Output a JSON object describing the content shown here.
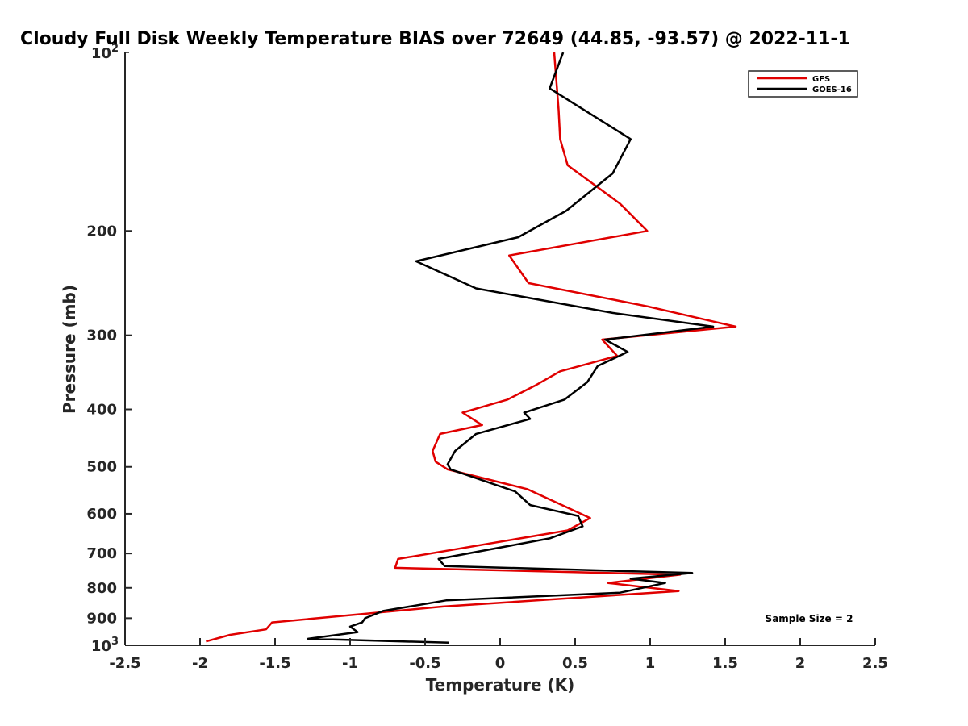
{
  "chart_data": {
    "type": "line",
    "title": "Cloudy Full Disk Weekly Temperature BIAS over 72649 (44.85, -93.57) @ 2022-11-1",
    "xlabel": "Temperature (K)",
    "ylabel": "Pressure (mb)",
    "xlim": [
      -2.5,
      2.5
    ],
    "ylim": [
      1000,
      100
    ],
    "yscale": "log",
    "y_reversed": true,
    "x_ticks": [
      "-2.5",
      "-2",
      "-1.5",
      "-1",
      "-0.5",
      "0",
      "0.5",
      "1",
      "1.5",
      "2",
      "2.5"
    ],
    "y_tick_values": [
      200,
      300,
      400,
      500,
      600,
      700,
      800,
      900
    ],
    "y_tick_labels": [
      "200",
      "300",
      "400",
      "500",
      "600",
      "700",
      "800",
      "900"
    ],
    "y_top_label": {
      "base": "10",
      "exp": "2"
    },
    "y_bottom_label": {
      "base": "10",
      "exp": "3"
    },
    "grid": false,
    "legend_position": "top-right",
    "series": [
      {
        "name": "GFS",
        "color": "#e00000",
        "points": [
          [
            0.36,
            100
          ],
          [
            0.39,
            125
          ],
          [
            0.4,
            140
          ],
          [
            0.45,
            155
          ],
          [
            0.8,
            180
          ],
          [
            0.98,
            200
          ],
          [
            0.06,
            220
          ],
          [
            0.19,
            245
          ],
          [
            0.98,
            268
          ],
          [
            1.57,
            290
          ],
          [
            0.68,
            305
          ],
          [
            0.78,
            325
          ],
          [
            0.4,
            345
          ],
          [
            0.23,
            365
          ],
          [
            0.05,
            385
          ],
          [
            -0.25,
            405
          ],
          [
            -0.12,
            425
          ],
          [
            -0.4,
            440
          ],
          [
            -0.45,
            470
          ],
          [
            -0.43,
            490
          ],
          [
            -0.35,
            505
          ],
          [
            0.18,
            545
          ],
          [
            0.6,
            610
          ],
          [
            0.45,
            640
          ],
          [
            -0.68,
            715
          ],
          [
            -0.7,
            740
          ],
          [
            1.2,
            760
          ],
          [
            0.72,
            785
          ],
          [
            1.19,
            810
          ],
          [
            -0.38,
            860
          ],
          [
            -1.52,
            915
          ],
          [
            -1.56,
            940
          ],
          [
            -1.8,
            960
          ],
          [
            -1.96,
            985
          ]
        ]
      },
      {
        "name": "GOES-16",
        "color": "#000000",
        "points": [
          [
            0.42,
            100
          ],
          [
            0.33,
            115
          ],
          [
            0.87,
            140
          ],
          [
            0.75,
            160
          ],
          [
            0.44,
            185
          ],
          [
            0.12,
            205
          ],
          [
            -0.56,
            225
          ],
          [
            -0.16,
            250
          ],
          [
            0.75,
            275
          ],
          [
            1.42,
            290
          ],
          [
            0.7,
            305
          ],
          [
            0.85,
            320
          ],
          [
            0.65,
            338
          ],
          [
            0.58,
            360
          ],
          [
            0.43,
            385
          ],
          [
            0.16,
            405
          ],
          [
            0.2,
            415
          ],
          [
            -0.16,
            440
          ],
          [
            -0.3,
            470
          ],
          [
            -0.35,
            495
          ],
          [
            -0.33,
            505
          ],
          [
            0.1,
            550
          ],
          [
            0.2,
            580
          ],
          [
            0.52,
            605
          ],
          [
            0.55,
            630
          ],
          [
            0.33,
            660
          ],
          [
            -0.41,
            715
          ],
          [
            -0.37,
            735
          ],
          [
            1.28,
            755
          ],
          [
            0.87,
            772
          ],
          [
            1.1,
            785
          ],
          [
            0.8,
            815
          ],
          [
            -0.36,
            840
          ],
          [
            -0.78,
            875
          ],
          [
            -0.9,
            900
          ],
          [
            -0.92,
            915
          ],
          [
            -1.0,
            930
          ],
          [
            -0.95,
            950
          ],
          [
            -1.28,
            975
          ],
          [
            -0.34,
            990
          ]
        ]
      }
    ],
    "annotation": "Sample Size = 2"
  }
}
